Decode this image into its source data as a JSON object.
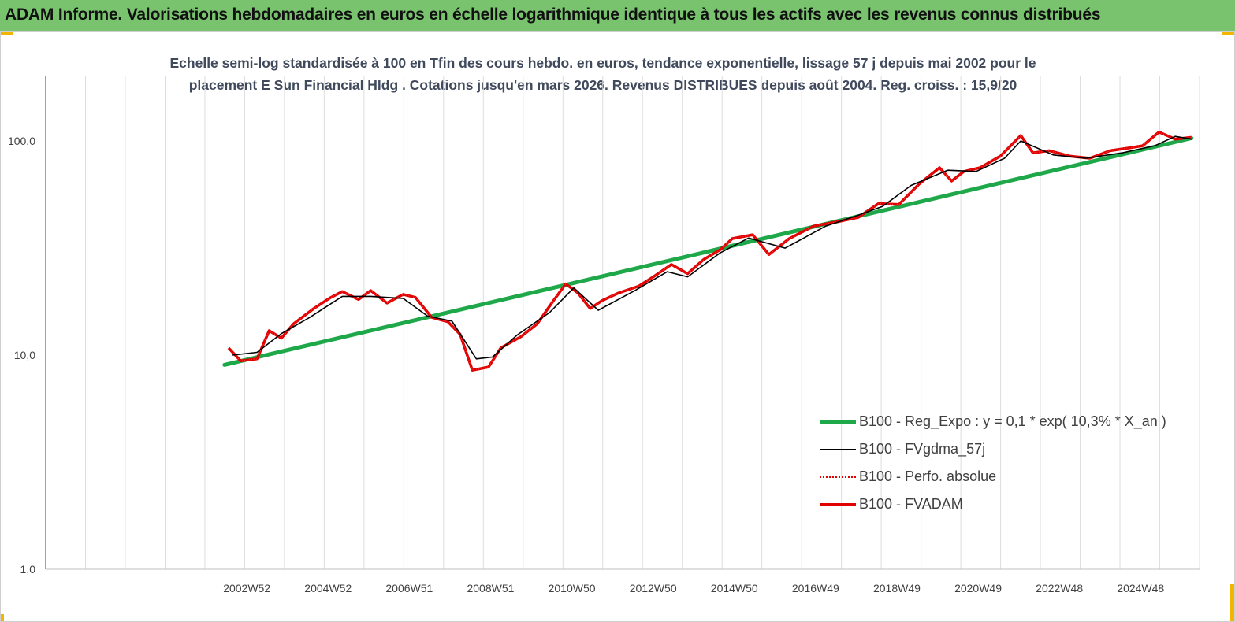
{
  "banner": {
    "title": "ADAM Informe. Valorisations hebdomadaires en euros en échelle logarithmique identique à tous les actifs avec les revenus connus distribués"
  },
  "chart_data": {
    "type": "line",
    "title_line1": "Echelle semi-log standardisée à 100 en Tfin des cours hebdo. en euros, tendance exponentielle, lissage 57 j depuis mai 2002 pour le",
    "title_line2": "placement E Sun Financial Hldg . Cotations jusqu'en mars 2026. Revenus DISTRIBUES depuis août 2004. Reg. croiss. : 15,9/20",
    "y_scale": "log",
    "ylim": [
      1,
      100
    ],
    "y_ticks": [
      "1,0",
      "10,0",
      "100,0"
    ],
    "x_ticks": [
      "2002W52",
      "2004W52",
      "2006W51",
      "2008W51",
      "2010W50",
      "2012W50",
      "2014W50",
      "2016W49",
      "2018W49",
      "2020W49",
      "2022W48",
      "2024W48"
    ],
    "xlim": [
      1998.0,
      2026.4
    ],
    "grid": "vertical",
    "legend_position": "right",
    "colors": {
      "trend": "#1fa84a",
      "smooth": "#000000",
      "perf": "#e00000",
      "fvadam": "#e00000",
      "axis": "#3e6fa8",
      "grid": "#dddddd"
    },
    "series": [
      {
        "name": "B100 - Reg_Expo : y = 0,1 * exp( 10,3% *  X_an )",
        "key": "trend",
        "x": [
          2002.4,
          2026.2
        ],
        "y": [
          9.0,
          103.0
        ]
      },
      {
        "name": "B100 - FVgdma_57j",
        "key": "smooth",
        "x": [
          2002.6,
          2003.2,
          2003.8,
          2004.5,
          2005.3,
          2006.0,
          2006.8,
          2007.4,
          2008.0,
          2008.6,
          2009.0,
          2009.6,
          2010.4,
          2011.0,
          2011.6,
          2012.5,
          2013.3,
          2013.8,
          2014.6,
          2015.3,
          2016.2,
          2017.2,
          2018.0,
          2018.6,
          2019.3,
          2020.2,
          2020.9,
          2021.6,
          2022.0,
          2022.8,
          2023.6,
          2024.5,
          2025.3,
          2025.8,
          2026.2
        ],
        "y": [
          10.0,
          10.3,
          12.6,
          15.0,
          18.8,
          18.8,
          18.4,
          15.2,
          14.4,
          9.6,
          9.8,
          12.4,
          15.8,
          20.6,
          16.2,
          20.0,
          24.5,
          23.2,
          30.0,
          35.2,
          31.6,
          40.0,
          45.0,
          49.5,
          62.0,
          73.0,
          72.0,
          83.0,
          100.0,
          86.0,
          83.0,
          88.0,
          95.0,
          105.0,
          102.0
        ]
      },
      {
        "name": "B100 - Perfo. absolue",
        "key": "perf",
        "style": "dotted"
      },
      {
        "name": "B100 - FVADAM",
        "key": "fvadam",
        "x": [
          2002.5,
          2002.8,
          2003.2,
          2003.5,
          2003.8,
          2004.1,
          2004.6,
          2005.0,
          2005.3,
          2005.7,
          2006.0,
          2006.4,
          2006.8,
          2007.1,
          2007.5,
          2007.9,
          2008.2,
          2008.5,
          2008.9,
          2009.2,
          2009.7,
          2010.1,
          2010.5,
          2010.8,
          2011.1,
          2011.4,
          2011.7,
          2012.1,
          2012.6,
          2013.0,
          2013.4,
          2013.8,
          2014.2,
          2014.6,
          2014.9,
          2015.4,
          2015.8,
          2016.3,
          2016.9,
          2017.5,
          2018.0,
          2018.5,
          2019.0,
          2019.5,
          2020.0,
          2020.3,
          2020.6,
          2021.0,
          2021.5,
          2022.0,
          2022.3,
          2022.7,
          2023.2,
          2023.7,
          2024.2,
          2024.7,
          2025.0,
          2025.4,
          2025.8,
          2026.2
        ],
        "y": [
          10.8,
          9.4,
          9.6,
          13.0,
          12.0,
          14.0,
          16.5,
          18.5,
          19.8,
          18.2,
          20.0,
          17.5,
          19.2,
          18.6,
          15.0,
          14.3,
          12.5,
          8.5,
          8.8,
          10.8,
          12.2,
          14.0,
          18.0,
          21.5,
          19.5,
          16.5,
          18.0,
          19.5,
          21.0,
          23.5,
          26.5,
          24.0,
          28.0,
          31.0,
          35.0,
          36.5,
          29.5,
          35.0,
          40.0,
          42.0,
          44.0,
          51.0,
          50.5,
          63.0,
          75.0,
          65.0,
          72.0,
          75.0,
          85.0,
          106.0,
          88.0,
          90.0,
          85.0,
          83.0,
          90.0,
          93.0,
          95.0,
          110.0,
          102.0,
          104.0
        ]
      }
    ]
  }
}
